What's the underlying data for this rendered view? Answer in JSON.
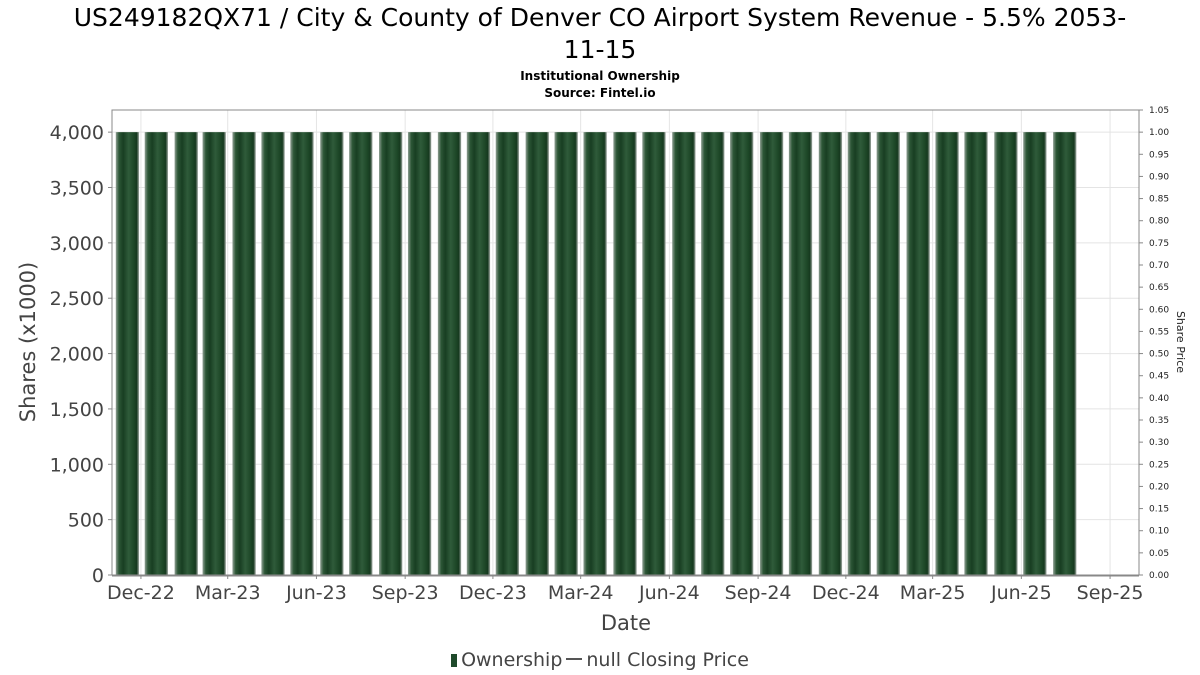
{
  "chart_data": {
    "type": "bar",
    "title_line1": "US249182QX71 / City & County of Denver CO Airport System Revenue - 5.5% 2053-",
    "title_line2": "11-15",
    "subtitle": "Institutional Ownership",
    "source": "Source: Fintel.io",
    "xlabel": "Date",
    "ylabel": "Shares (x1000)",
    "y2label": "Share Price",
    "ylim": [
      0,
      4200
    ],
    "y2lim": [
      0,
      1.05
    ],
    "yticks": [
      "0",
      "500",
      "1,000",
      "1,500",
      "2,000",
      "2,500",
      "3,000",
      "3,500",
      "4,000"
    ],
    "ytick_values": [
      0,
      500,
      1000,
      1500,
      2000,
      2500,
      3000,
      3500,
      4000
    ],
    "y2ticks": [
      "0.00",
      "0.05",
      "0.10",
      "0.15",
      "0.20",
      "0.25",
      "0.30",
      "0.35",
      "0.40",
      "0.45",
      "0.50",
      "0.55",
      "0.60",
      "0.65",
      "0.70",
      "0.75",
      "0.80",
      "0.85",
      "0.90",
      "0.95",
      "1.00",
      "1.05"
    ],
    "x_start": "2022-11-01",
    "x_end": "2025-10-01",
    "xticks": [
      "Dec-22",
      "Mar-23",
      "Jun-23",
      "Sep-23",
      "Dec-23",
      "Mar-24",
      "Jun-24",
      "Sep-24",
      "Dec-24",
      "Mar-25",
      "Jun-25",
      "Sep-25"
    ],
    "xtick_dates": [
      "2022-12-01",
      "2023-03-01",
      "2023-06-01",
      "2023-09-01",
      "2023-12-01",
      "2024-03-01",
      "2024-06-01",
      "2024-09-01",
      "2024-12-01",
      "2025-03-01",
      "2025-06-01",
      "2025-09-01"
    ],
    "series": [
      {
        "name": "Ownership",
        "color": "#1f4a2b",
        "bar_period_days": 30.4,
        "x": [
          "2022-11-17",
          "2022-12-17",
          "2023-01-17",
          "2023-02-15",
          "2023-03-18",
          "2023-04-17",
          "2023-05-17",
          "2023-06-17",
          "2023-07-17",
          "2023-08-17",
          "2023-09-16",
          "2023-10-17",
          "2023-11-16",
          "2023-12-16",
          "2024-01-16",
          "2024-02-15",
          "2024-03-16",
          "2024-04-16",
          "2024-05-16",
          "2024-06-16",
          "2024-07-16",
          "2024-08-15",
          "2024-09-15",
          "2024-10-15",
          "2024-11-15",
          "2024-12-15",
          "2025-01-14",
          "2025-02-14",
          "2025-03-16",
          "2025-04-15",
          "2025-05-16",
          "2025-06-15",
          "2025-07-16"
        ],
        "values": [
          4000,
          4000,
          4000,
          4000,
          4000,
          4000,
          4000,
          4000,
          4000,
          4000,
          4000,
          4000,
          4000,
          4000,
          4000,
          4000,
          4000,
          4000,
          4000,
          4000,
          4000,
          4000,
          4000,
          4000,
          4000,
          4000,
          4000,
          4000,
          4000,
          4000,
          4000,
          4000,
          4000
        ]
      },
      {
        "name": "null Closing Price",
        "color": "#555555",
        "values": []
      }
    ]
  }
}
